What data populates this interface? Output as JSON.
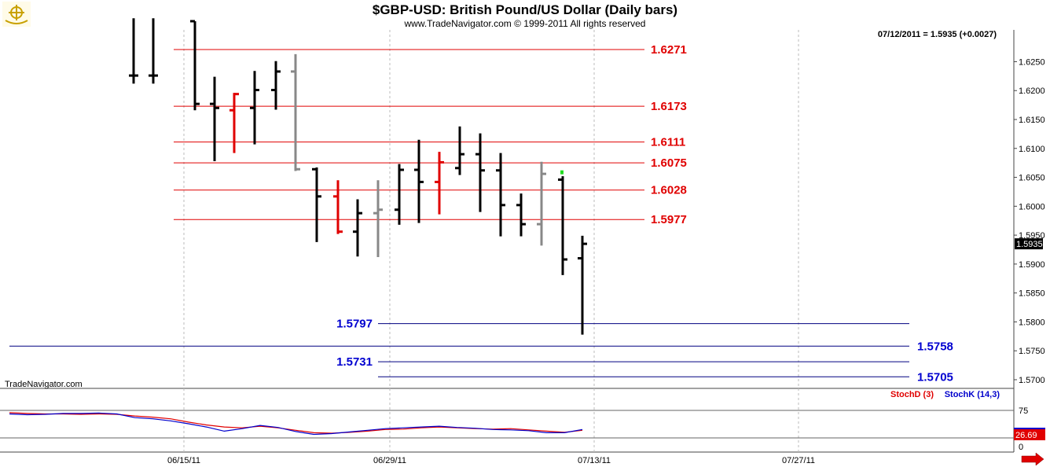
{
  "header": {
    "title": "$GBP-USD:  British Pound/US Dollar  (Daily bars)",
    "subtitle": "www.TradeNavigator.com © 1999-2011 All rights reserved",
    "last_value_label": "07/12/2011 = 1.5935 (+0.0027)",
    "watermark": "TradeNavigator.com"
  },
  "colors": {
    "up_bar": "#000000",
    "down_bar": "#e00000",
    "neutral_bar": "#888888",
    "resistance": "#e00000",
    "support": "#000080",
    "stoch_d": "#e00000",
    "stoch_k": "#0000cc"
  },
  "icons": {
    "logo": "ship-wheel-logo-icon",
    "scroll": "red-arrow-right-icon"
  },
  "chart_data": [
    {
      "type": "ohlc",
      "title": "$GBP-USD:  British Pound/US Dollar  (Daily bars)",
      "ylim": [
        1.5685,
        1.6305
      ],
      "y_ticks": [
        "1.6250",
        "1.6200",
        "1.6150",
        "1.6100",
        "1.6050",
        "1.6000",
        "1.5950",
        "1.5900",
        "1.5850",
        "1.5800",
        "1.5750",
        "1.5700"
      ],
      "x_ticks": [
        "06/15/11",
        "06/29/11",
        "07/13/11",
        "07/27/11"
      ],
      "price_label": "1.5935",
      "bars": [
        {
          "o": 1.6226,
          "h": 1.6325,
          "l": 1.6212,
          "c": 1.6226,
          "color": "up"
        },
        {
          "o": 1.6226,
          "h": 1.6325,
          "l": 1.6212,
          "c": 1.6226,
          "color": "up"
        },
        {
          "o": 1.632,
          "h": 1.632,
          "l": 1.6166,
          "c": 1.6177,
          "color": "up"
        },
        {
          "o": 1.6177,
          "h": 1.6224,
          "l": 1.6078,
          "c": 1.617,
          "color": "up"
        },
        {
          "o": 1.6166,
          "h": 1.6196,
          "l": 1.6092,
          "c": 1.6194,
          "color": "down"
        },
        {
          "o": 1.617,
          "h": 1.6234,
          "l": 1.6107,
          "c": 1.6201,
          "color": "up"
        },
        {
          "o": 1.6201,
          "h": 1.6251,
          "l": 1.6167,
          "c": 1.6233,
          "color": "up"
        },
        {
          "o": 1.6233,
          "h": 1.6263,
          "l": 1.6061,
          "c": 1.6064,
          "color": "neutral"
        },
        {
          "o": 1.6064,
          "h": 1.6067,
          "l": 1.5938,
          "c": 1.6017,
          "color": "up"
        },
        {
          "o": 1.6017,
          "h": 1.6045,
          "l": 1.5952,
          "c": 1.5956,
          "color": "down"
        },
        {
          "o": 1.5956,
          "h": 1.6012,
          "l": 1.5913,
          "c": 1.5988,
          "color": "up"
        },
        {
          "o": 1.5988,
          "h": 1.6045,
          "l": 1.5912,
          "c": 1.5994,
          "color": "neutral"
        },
        {
          "o": 1.5994,
          "h": 1.6073,
          "l": 1.5968,
          "c": 1.6063,
          "color": "up"
        },
        {
          "o": 1.6063,
          "h": 1.6115,
          "l": 1.5971,
          "c": 1.6042,
          "color": "up"
        },
        {
          "o": 1.6042,
          "h": 1.6094,
          "l": 1.5986,
          "c": 1.6076,
          "color": "down"
        },
        {
          "o": 1.6066,
          "h": 1.6138,
          "l": 1.6054,
          "c": 1.609,
          "color": "up"
        },
        {
          "o": 1.609,
          "h": 1.6126,
          "l": 1.599,
          "c": 1.6062,
          "color": "up"
        },
        {
          "o": 1.6062,
          "h": 1.6092,
          "l": 1.5948,
          "c": 1.6002,
          "color": "up"
        },
        {
          "o": 1.6002,
          "h": 1.6022,
          "l": 1.5948,
          "c": 1.5969,
          "color": "up"
        },
        {
          "o": 1.5969,
          "h": 1.6077,
          "l": 1.5932,
          "c": 1.6056,
          "color": "neutral"
        },
        {
          "o": 1.6046,
          "h": 1.6052,
          "l": 1.5881,
          "c": 1.5908,
          "color": "up"
        },
        {
          "o": 1.591,
          "h": 1.5949,
          "l": 1.5778,
          "c": 1.5935,
          "color": "up"
        }
      ],
      "resistance_levels": [
        "1.6271",
        "1.6173",
        "1.6111",
        "1.6075",
        "1.6028",
        "1.5977"
      ],
      "support_levels": [
        "1.5797",
        "1.5758",
        "1.5731",
        "1.5705"
      ]
    },
    {
      "type": "line",
      "ylim": [
        0,
        100
      ],
      "y_ticks": [
        "75",
        "0"
      ],
      "value_label": "26.69",
      "series": [
        {
          "name": "StochD (3)",
          "values": [
            75,
            73,
            72,
            72,
            71,
            72,
            71,
            67,
            64,
            60,
            52,
            45,
            40,
            38,
            42,
            38,
            32,
            26,
            25,
            27,
            30,
            34,
            35,
            38,
            40,
            38,
            36,
            35,
            36,
            33,
            30,
            27,
            32
          ]
        },
        {
          "name": "StochK (14,3)",
          "values": [
            72,
            70,
            71,
            73,
            73,
            74,
            72,
            63,
            60,
            55,
            48,
            40,
            30,
            36,
            44,
            39,
            29,
            22,
            24,
            28,
            32,
            36,
            38,
            40,
            42,
            39,
            37,
            34,
            33,
            31,
            26,
            26,
            34
          ]
        }
      ]
    }
  ]
}
